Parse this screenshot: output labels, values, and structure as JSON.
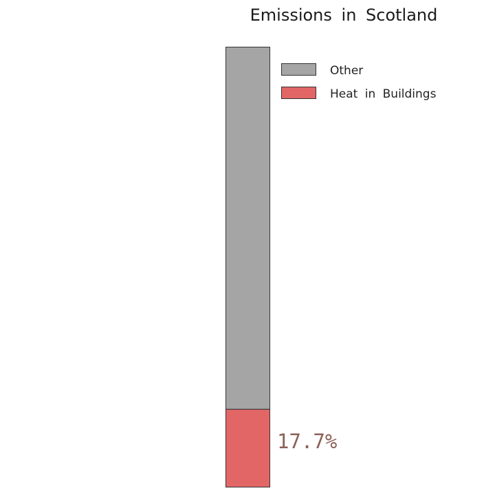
{
  "chart_data": {
    "type": "bar",
    "stacked": true,
    "title": "Emissions in Scotland",
    "xlabel": "",
    "ylabel": "",
    "ylim": [
      0,
      100
    ],
    "grid": false,
    "legend_position": "top-right",
    "series": [
      {
        "name": "Heat in Buildings",
        "value": 17.7,
        "color": "#e36666"
      },
      {
        "name": "Other",
        "value": 82.3,
        "color": "#a5a5a5"
      }
    ],
    "data_label": {
      "series": "Heat in Buildings",
      "text": "17.7%",
      "color": "#8b6158"
    }
  }
}
